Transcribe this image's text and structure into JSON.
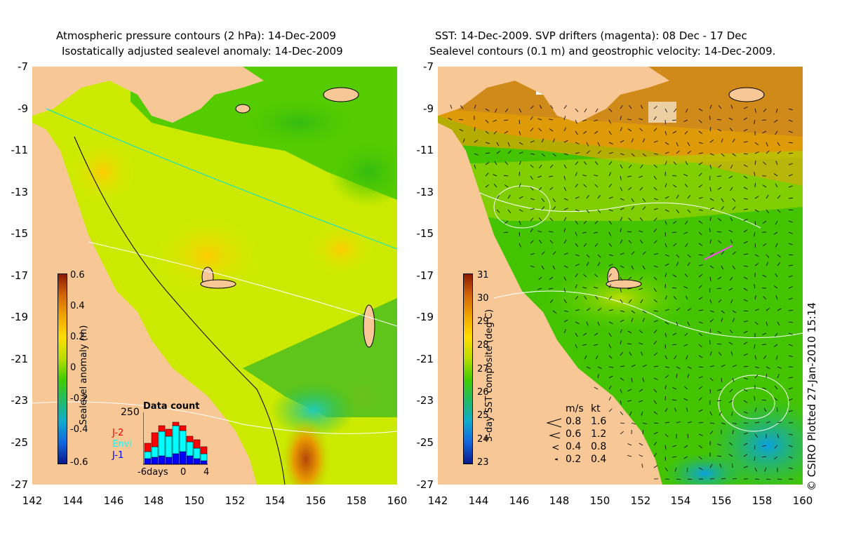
{
  "left_panel": {
    "title_line1": "Atmospheric pressure contours (2 hPa): 14-Dec-2009",
    "title_line2": "Isostatically adjusted sealevel anomaly: 14-Dec-2009",
    "colorbar_title": "Sealevel anomaly (m)",
    "colorbar_ticks": [
      "0.6",
      "0.4",
      "0.2",
      "0",
      "-0.2",
      "-0.4",
      "-0.6"
    ],
    "data_count": {
      "title": "Data count",
      "max_label": "250",
      "x_labels": [
        "-6days",
        "0",
        "4"
      ],
      "series": [
        "J-2",
        "Envi",
        "J-1"
      ],
      "colors": {
        "J-2": "#ff0000",
        "Envi": "#00ffff",
        "J-1": "#0000ff"
      }
    }
  },
  "right_panel": {
    "title_line1": "SST: 14-Dec-2009. SVP drifters (magenta): 08 Dec - 17 Dec",
    "title_line2": "Sealevel contours (0.1 m) and geostrophic velocity: 14-Dec-2009.",
    "colorbar_title": "3-day SST composite (deg C)",
    "colorbar_ticks": [
      "31",
      "30",
      "29",
      "28",
      "27",
      "26",
      "25",
      "24",
      "23"
    ],
    "velocity_legend": {
      "header_ms": "m/s",
      "header_kt": "kt",
      "rows": [
        [
          "0.8",
          "1.6"
        ],
        [
          "0.6",
          "1.2"
        ],
        [
          "0.4",
          "0.8"
        ],
        [
          "0.2",
          "0.4"
        ]
      ]
    }
  },
  "axes": {
    "y_labels": [
      "-7",
      "-9",
      "-11",
      "-13",
      "-15",
      "-17",
      "-19",
      "-21",
      "-23",
      "-25",
      "-27"
    ],
    "x_labels": [
      "142",
      "144",
      "146",
      "148",
      "150",
      "152",
      "154",
      "156",
      "158",
      "160"
    ]
  },
  "credit": "© CSIRO Plotted 27-Jan-2010 15:14",
  "colors": {
    "land": "#f8c796",
    "sla_zero": "#22bb00",
    "sst_mid": "#33cc00"
  }
}
